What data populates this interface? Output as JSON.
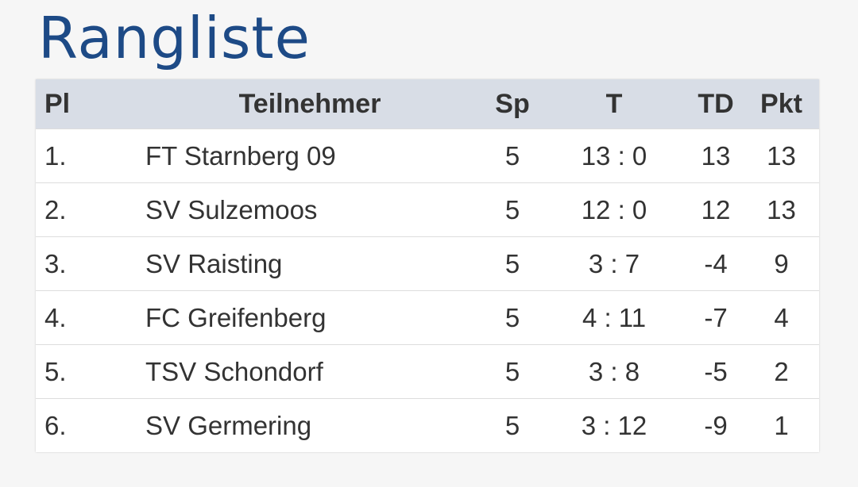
{
  "title": "Rangliste",
  "table": {
    "header": [
      "Pl",
      "Teilnehmer",
      "Sp",
      "T",
      "TD",
      "Pkt"
    ],
    "rows": [
      [
        "1.",
        "FT Starnberg 09",
        "5",
        "13 : 0",
        "13",
        "13"
      ],
      [
        "2.",
        "SV Sulzemoos",
        "5",
        "12 : 0",
        "12",
        "13"
      ],
      [
        "3.",
        "SV Raisting",
        "5",
        "3 : 7",
        "-4",
        "9"
      ],
      [
        "4.",
        "FC Greifenberg",
        "5",
        "4 : 11",
        "-7",
        "4"
      ],
      [
        "5.",
        "TSV Schondorf",
        "5",
        "3 : 8",
        "-5",
        "2"
      ],
      [
        "6.",
        "SV Germering",
        "5",
        "3 : 12",
        "-9",
        "1"
      ]
    ]
  }
}
